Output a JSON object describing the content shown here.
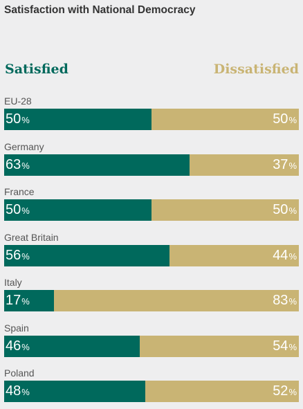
{
  "title": "Satisfaction with National Democracy",
  "legend": {
    "satisfied": "Satisfied",
    "dissatisfied": "Dissatisfied"
  },
  "colors": {
    "satisfied": "#00695c",
    "dissatisfied": "#c9b474",
    "background": "#eeeeef"
  },
  "percent_symbol": "%",
  "chart_data": {
    "type": "bar",
    "orientation": "horizontal",
    "stacked": true,
    "title": "Satisfaction with National Democracy",
    "categories": [
      "EU-28",
      "Germany",
      "France",
      "Great Britain",
      "Italy",
      "Spain",
      "Poland"
    ],
    "series": [
      {
        "name": "Satisfied",
        "values": [
          50,
          63,
          50,
          56,
          17,
          46,
          48
        ]
      },
      {
        "name": "Dissatisfied",
        "values": [
          50,
          37,
          50,
          44,
          83,
          54,
          52
        ]
      }
    ],
    "xlim": [
      0,
      100
    ],
    "grid": false,
    "legend_placement": "top"
  }
}
